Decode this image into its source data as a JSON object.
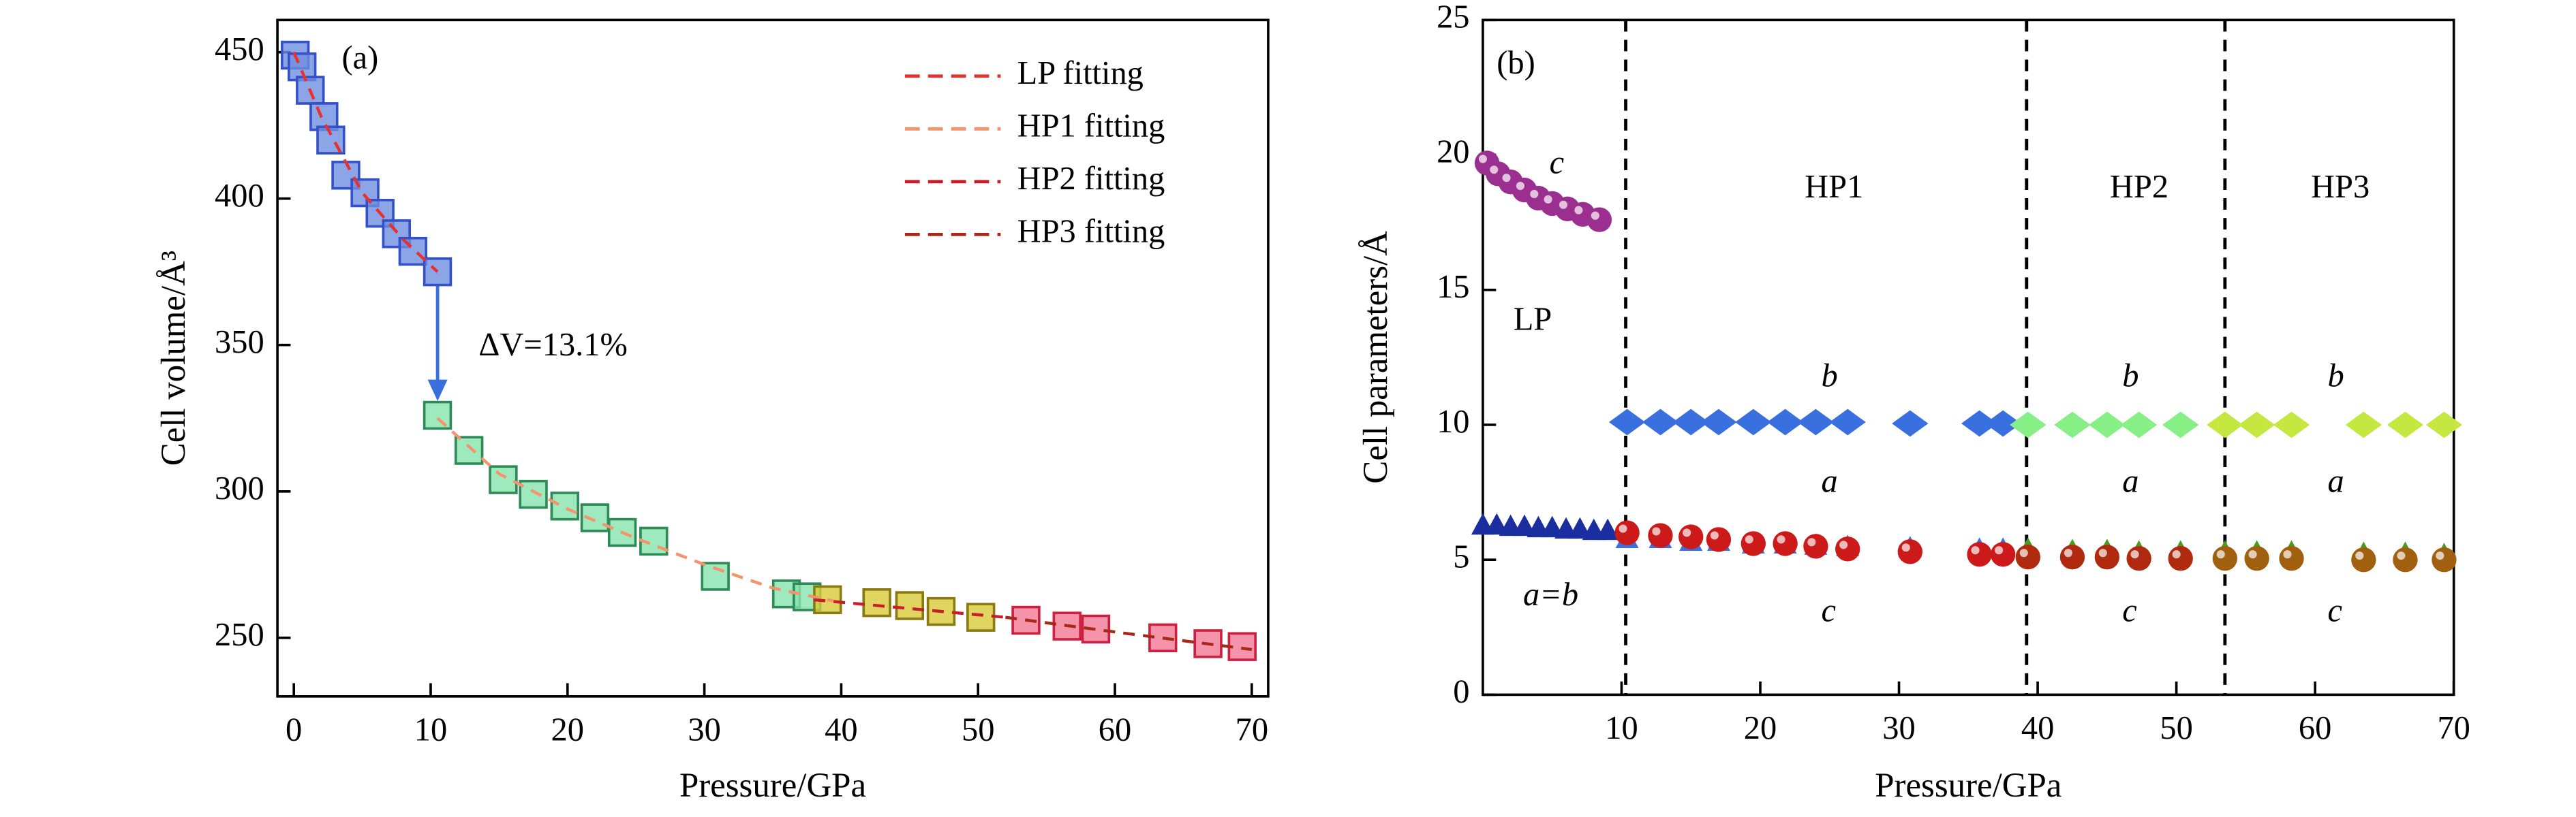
{
  "chart_data": [
    {
      "type": "scatter",
      "xlabel": "Pressure/GPa",
      "ylabel": "Cell volume/Å³",
      "xlim": [
        -1.2,
        71.2
      ],
      "ylim": [
        230,
        461
      ],
      "xticks": [
        0,
        10,
        20,
        30,
        40,
        50,
        60,
        70
      ],
      "yticks": [
        250,
        300,
        350,
        400,
        450
      ],
      "legend": "upper right",
      "series": [
        {
          "color": "#6f8fe0",
          "edge": "#3451c8",
          "marker": "square",
          "x": [
            0.1,
            0.6,
            1.2,
            2.2,
            2.7,
            3.8,
            5.2,
            6.3,
            7.5,
            8.7,
            10.5
          ],
          "values": [
            449,
            445,
            437,
            428,
            420,
            408,
            402,
            395,
            388,
            382,
            375
          ]
        },
        {
          "color": "#86e3ae",
          "edge": "#2e8b57",
          "marker": "square",
          "x": [
            10.5,
            12.8,
            15.3,
            17.5,
            19.8,
            22,
            24,
            26.3,
            30.8,
            36,
            37.5
          ],
          "values": [
            326,
            314,
            304,
            299,
            295,
            291,
            286,
            283,
            271,
            265,
            264
          ]
        },
        {
          "color": "#d8cb3a",
          "edge": "#8a7a10",
          "marker": "square",
          "x": [
            39,
            42.6,
            45,
            47.3,
            50.2
          ],
          "values": [
            263,
            262,
            261,
            259,
            257
          ]
        },
        {
          "color": "#f27896",
          "edge": "#cc2040",
          "marker": "square",
          "x": [
            53.5,
            56.5,
            58.6,
            63.5,
            66.8,
            69.3
          ],
          "values": [
            256,
            254,
            253,
            250,
            248,
            247
          ]
        },
        {
          "name": "LP fitting",
          "color": "#e8302e",
          "linestyle": "dashed",
          "x": [
            0,
            2,
            5,
            8,
            10.5
          ],
          "values": [
            450,
            428,
            402,
            386,
            375
          ]
        },
        {
          "name": "HP1 fitting",
          "color": "#f4946c",
          "linestyle": "dashed",
          "x": [
            10.5,
            15,
            20,
            25,
            30,
            35,
            40
          ],
          "values": [
            325,
            306,
            294,
            284,
            275,
            267,
            262
          ]
        },
        {
          "name": "HP2 fitting",
          "color": "#c81e2a",
          "linestyle": "dashed",
          "x": [
            38,
            45,
            52
          ],
          "values": [
            263,
            260,
            257
          ]
        },
        {
          "name": "HP3 fitting",
          "color": "#a8281a",
          "linestyle": "dashed",
          "x": [
            52,
            60,
            70
          ],
          "values": [
            257,
            252,
            246
          ]
        }
      ],
      "annotations": [
        {
          "text": "(a)",
          "x": 3.5,
          "y": 447,
          "color": "#000000"
        },
        {
          "text": "ΔV=13.1%",
          "x": 13.5,
          "y": 349,
          "color": "#3a6fe0"
        }
      ]
    },
    {
      "type": "scatter",
      "xlabel": "Pressure/GPa",
      "ylabel": "Cell parameters/Å",
      "xlim": [
        0,
        70
      ],
      "ylim": [
        0,
        25
      ],
      "xticks": [
        10,
        20,
        30,
        40,
        50,
        60,
        70
      ],
      "yticks": [
        0,
        5,
        10,
        15,
        20,
        25
      ],
      "vlines": [
        10.3,
        39.2,
        53.5
      ],
      "series": [
        {
          "color": "#9b2f8f",
          "marker": "sphere",
          "x": [
            0.3,
            1.1,
            2,
            3,
            4,
            5,
            6.1,
            7.2,
            8.4
          ],
          "values": [
            19.7,
            19.3,
            19.0,
            18.7,
            18.4,
            18.2,
            18.0,
            17.8,
            17.6
          ]
        },
        {
          "color": "#1a2ea0",
          "marker": "triangle",
          "x": [
            0,
            1,
            2,
            3,
            4,
            5,
            6,
            7,
            8,
            9
          ],
          "values": [
            6.3,
            6.3,
            6.25,
            6.25,
            6.2,
            6.2,
            6.15,
            6.15,
            6.1,
            6.1
          ]
        },
        {
          "color": "#3a6fe0",
          "marker": "diamond",
          "x": [
            10.4,
            12.8,
            15,
            17,
            19.5,
            21.8,
            24,
            26.3,
            30.8,
            35.8,
            37.5
          ],
          "values": [
            10.1,
            10.1,
            10.1,
            10.1,
            10.1,
            10.1,
            10.1,
            10.1,
            10.05,
            10.05,
            10.05
          ]
        },
        {
          "color": "#3a6fe0",
          "marker": "triangle",
          "x": [
            10.4,
            12.8,
            15,
            17,
            19.5,
            21.8,
            24,
            26.3,
            30.8,
            35.8,
            37.5
          ],
          "values": [
            5.8,
            5.8,
            5.7,
            5.7,
            5.6,
            5.6,
            5.55,
            5.5,
            5.45,
            5.4,
            5.4
          ]
        },
        {
          "color": "#cc1a1a",
          "marker": "sphere",
          "x": [
            10.4,
            12.8,
            15,
            17,
            19.5,
            21.8,
            24,
            26.3,
            30.8,
            35.8,
            37.5
          ],
          "values": [
            6.0,
            5.9,
            5.85,
            5.75,
            5.6,
            5.6,
            5.5,
            5.4,
            5.3,
            5.2,
            5.2
          ]
        },
        {
          "color": "#86f086",
          "marker": "diamond",
          "x": [
            39.3,
            42.5,
            45,
            47.3,
            50.3
          ],
          "values": [
            10.0,
            10.0,
            10.0,
            10.0,
            10.0
          ]
        },
        {
          "color": "#4a9a20",
          "marker": "triangle",
          "x": [
            39.3,
            42.5,
            45,
            47.3,
            50.3
          ],
          "values": [
            5.4,
            5.35,
            5.35,
            5.3,
            5.3
          ]
        },
        {
          "color": "#b02a10",
          "marker": "sphere",
          "x": [
            39.3,
            42.5,
            45,
            47.3,
            50.3
          ],
          "values": [
            5.1,
            5.1,
            5.1,
            5.05,
            5.05
          ]
        },
        {
          "color": "#c4e840",
          "marker": "diamond",
          "x": [
            53.5,
            55.8,
            58.3,
            63.5,
            66.5,
            69.3
          ],
          "values": [
            10.0,
            10.0,
            10.0,
            10.0,
            10.0,
            10.0
          ]
        },
        {
          "color": "#4a9a20",
          "marker": "triangle",
          "x": [
            53.5,
            55.8,
            58.3,
            63.5,
            66.5,
            69.3
          ],
          "values": [
            5.3,
            5.3,
            5.3,
            5.25,
            5.25,
            5.2
          ]
        },
        {
          "color": "#a06010",
          "marker": "sphere",
          "x": [
            53.5,
            55.8,
            58.3,
            63.5,
            66.5,
            69.3
          ],
          "values": [
            5.05,
            5.05,
            5.05,
            5.0,
            5.0,
            5.0
          ]
        }
      ],
      "annotations": [
        {
          "text": "(b)",
          "x": 1,
          "y": 23.3,
          "color": "#000000"
        },
        {
          "text": "c",
          "x": 4.8,
          "y": 19.6,
          "color": "#9b2f8f",
          "italic": true
        },
        {
          "text": "LP",
          "x": 2.2,
          "y": 13.8,
          "color": "#000000"
        },
        {
          "text": "HP1",
          "x": 23.2,
          "y": 18.7,
          "color": "#000000"
        },
        {
          "text": "HP2",
          "x": 45.2,
          "y": 18.7,
          "color": "#000000"
        },
        {
          "text": "HP3",
          "x": 59.7,
          "y": 18.7,
          "color": "#000000"
        },
        {
          "text": "b",
          "x": 24.4,
          "y": 11.7,
          "color": "#3a6fe0",
          "italic": true
        },
        {
          "text": "b",
          "x": 46.1,
          "y": 11.7,
          "color": "#86e086",
          "italic": true
        },
        {
          "text": "b",
          "x": 60.9,
          "y": 11.7,
          "color": "#c4e040",
          "italic": true
        },
        {
          "text": "a",
          "x": 24.4,
          "y": 7.8,
          "color": "#3a6fe0",
          "italic": true
        },
        {
          "text": "a",
          "x": 46.1,
          "y": 7.8,
          "color": "#3a9a20",
          "italic": true
        },
        {
          "text": "a",
          "x": 60.9,
          "y": 7.8,
          "color": "#6a9a10",
          "italic": true
        },
        {
          "text": "a=b",
          "x": 2.9,
          "y": 3.6,
          "color": "#1a2ea0",
          "italic": true
        },
        {
          "text": "c",
          "x": 24.4,
          "y": 3.0,
          "color": "#cc2020",
          "italic": true
        },
        {
          "text": "c",
          "x": 46.1,
          "y": 3.0,
          "color": "#b03010",
          "italic": true
        },
        {
          "text": "c",
          "x": 60.9,
          "y": 3.0,
          "color": "#a05a10",
          "italic": true
        }
      ]
    }
  ]
}
